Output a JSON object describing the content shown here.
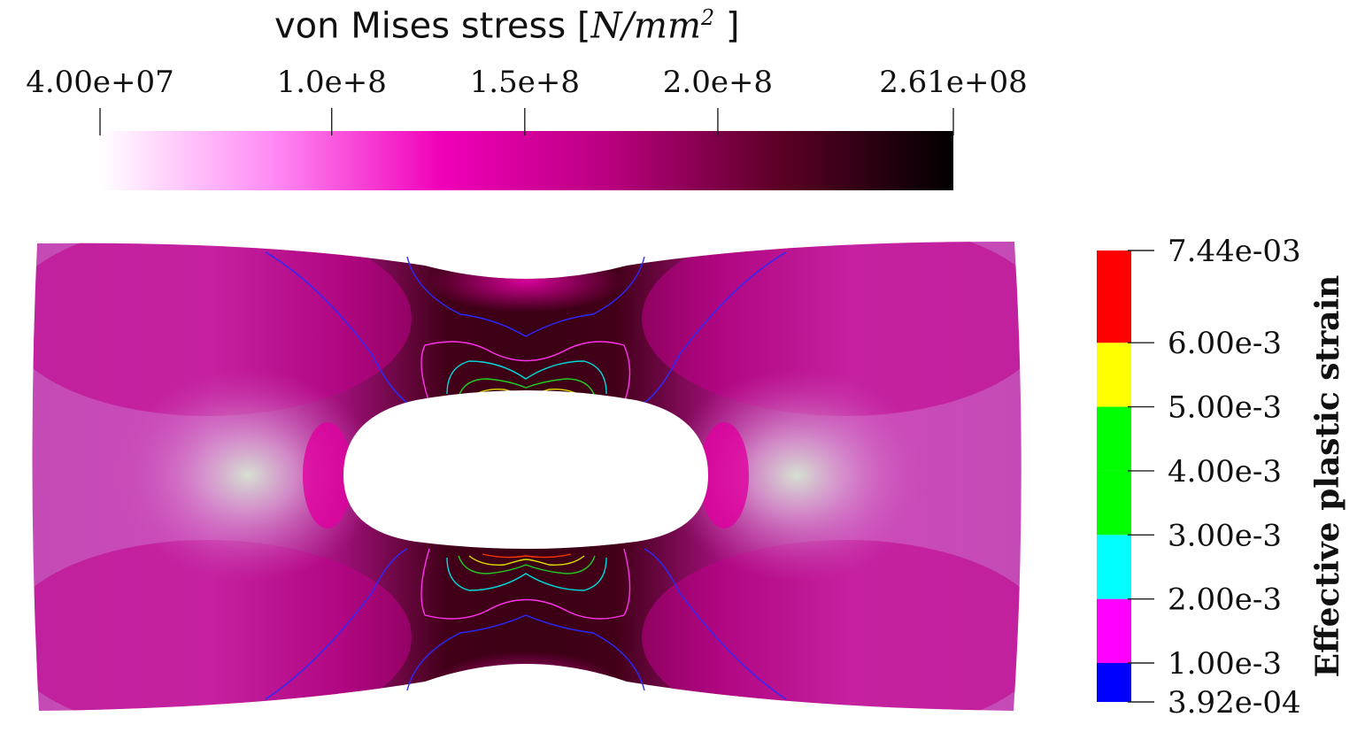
{
  "stress_bar": {
    "title_text": "von Mises stress [",
    "title_unit": "N/mm",
    "title_exp": "2",
    "title_close": " ]",
    "colors": [
      "#ffffff",
      "#ff8cf5",
      "#f000b8",
      "#b8007e",
      "#5a0024",
      "#000000"
    ],
    "ticks": [
      {
        "label": "4.00e+07",
        "value": 40000000
      },
      {
        "label": "1.0e+8",
        "value": 100000000
      },
      {
        "label": "1.5e+8",
        "value": 150000000
      },
      {
        "label": "2.0e+8",
        "value": 200000000
      },
      {
        "label": "2.61e+08",
        "value": 261000000
      }
    ],
    "range": [
      40000000,
      261000000
    ]
  },
  "strain_legend": {
    "title": "Effective plastic strain",
    "bands": [
      {
        "from": 0.000392,
        "to": 0.001,
        "color": "#0000ff"
      },
      {
        "from": 0.001,
        "to": 0.002,
        "color": "#ff00ff"
      },
      {
        "from": 0.002,
        "to": 0.003,
        "color": "#00ffff"
      },
      {
        "from": 0.003,
        "to": 0.004,
        "color": "#00ff00"
      },
      {
        "from": 0.004,
        "to": 0.005,
        "color": "#00ff00"
      },
      {
        "from": 0.005,
        "to": 0.006,
        "color": "#ffff00"
      },
      {
        "from": 0.006,
        "to": 0.00744,
        "color": "#ff0000"
      }
    ],
    "ticks": [
      {
        "label": "7.44e-03",
        "value": 0.00744
      },
      {
        "label": "6.00e-3",
        "value": 0.006
      },
      {
        "label": "5.00e-3",
        "value": 0.005
      },
      {
        "label": "4.00e-3",
        "value": 0.004
      },
      {
        "label": "3.00e-3",
        "value": 0.003
      },
      {
        "label": "2.00e-3",
        "value": 0.002
      },
      {
        "label": "1.00e-3",
        "value": 0.001
      },
      {
        "label": "3.92e-04",
        "value": 0.000392
      }
    ]
  },
  "chart_data": {
    "type": "heatmap",
    "title": "von Mises stress [N/mm^2 ]",
    "colorbar": {
      "label": "von Mises stress [N/mm^2 ]",
      "range": [
        40000000,
        261000000
      ],
      "ticks": [
        "4.00e+07",
        "1.0e+8",
        "1.5e+8",
        "2.0e+8",
        "2.61e+08"
      ]
    },
    "contours": {
      "label": "Effective plastic strain",
      "range": [
        0.000392,
        0.00744
      ],
      "levels": [
        0.001,
        0.002,
        0.003,
        0.004,
        0.005,
        0.006
      ],
      "level_colors": [
        "#0000ff",
        "#ff00ff",
        "#00ffff",
        "#00ff00",
        "#00ff00",
        "#ffff00"
      ],
      "ticks": [
        "7.44e-03",
        "6.00e-3",
        "5.00e-3",
        "4.00e-3",
        "3.00e-3",
        "2.00e-3",
        "1.00e-3",
        "3.92e-04"
      ]
    }
  }
}
